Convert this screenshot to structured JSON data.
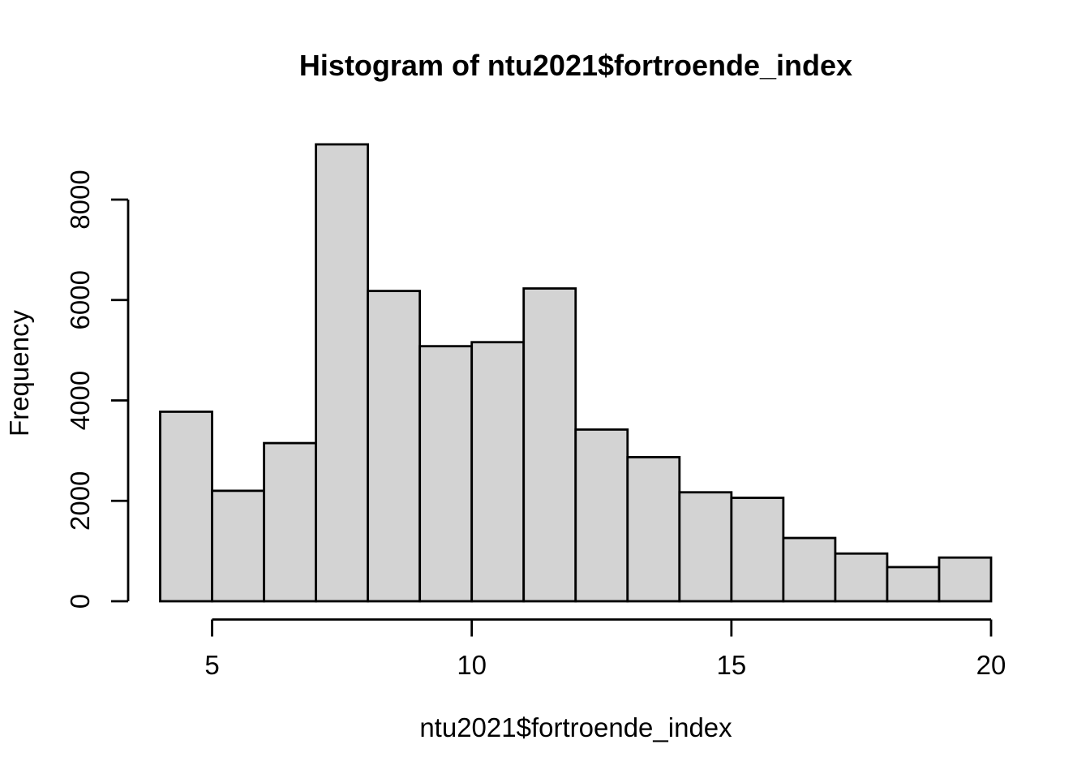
{
  "chart_data": {
    "type": "bar",
    "subtype": "histogram",
    "title": "Histogram of ntu2021$fortroende_index",
    "xlabel": "ntu2021$fortroende_index",
    "ylabel": "Frequency",
    "breaks": [
      4,
      5,
      6,
      7,
      8,
      9,
      10,
      11,
      12,
      13,
      14,
      15,
      16,
      17,
      18,
      19,
      20
    ],
    "counts": [
      3775,
      2200,
      3150,
      9100,
      6180,
      5080,
      5160,
      6230,
      3420,
      2870,
      2170,
      2060,
      1260,
      950,
      680,
      870
    ],
    "xlim": [
      4,
      20
    ],
    "ylim": [
      0,
      9100
    ],
    "x_ticks": [
      5,
      10,
      15,
      20
    ],
    "x_tick_labels": [
      "5",
      "10",
      "15",
      "20"
    ],
    "y_ticks": [
      0,
      2000,
      4000,
      6000,
      8000
    ],
    "y_tick_labels": [
      "0",
      "2000",
      "4000",
      "6000",
      "8000"
    ],
    "grid": false,
    "legend": null,
    "bar_fill": "#d3d3d3",
    "bar_stroke": "#000000",
    "axis_color": "#000000",
    "background": "#ffffff"
  }
}
